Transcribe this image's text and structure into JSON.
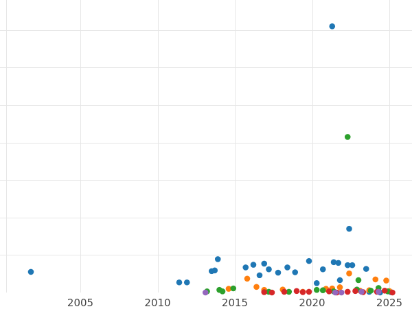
{
  "chart_data": {
    "type": "scatter",
    "title": "",
    "xlabel": "",
    "ylabel": "",
    "x_ticks": [
      2005,
      2010,
      2015,
      2020,
      2025
    ],
    "xlim": [
      2000,
      2026
    ],
    "ylim": [
      0,
      7.8
    ],
    "y_gridlines": [
      1,
      2,
      3,
      4,
      5,
      6,
      7
    ],
    "grid": true,
    "legend": "none",
    "colors": [
      "#1f77b4",
      "#ff7f0e",
      "#2ca02c",
      "#d62728",
      "#9467bd"
    ],
    "series": [
      {
        "color": "#1f77b4",
        "points": [
          [
            2001.8,
            0.55
          ],
          [
            2011.4,
            0.27
          ],
          [
            2011.9,
            0.27
          ],
          [
            2013.5,
            0.57
          ],
          [
            2013.7,
            0.59
          ],
          [
            2013.9,
            0.89
          ],
          [
            2015.7,
            0.67
          ],
          [
            2016.2,
            0.74
          ],
          [
            2016.6,
            0.46
          ],
          [
            2016.9,
            0.77
          ],
          [
            2017.2,
            0.62
          ],
          [
            2017.8,
            0.53
          ],
          [
            2018.4,
            0.67
          ],
          [
            2018.9,
            0.54
          ],
          [
            2019.8,
            0.84
          ],
          [
            2020.3,
            0.25
          ],
          [
            2020.7,
            0.62
          ],
          [
            2021.3,
            7.1
          ],
          [
            2021.4,
            0.81
          ],
          [
            2021.7,
            0.79
          ],
          [
            2021.8,
            0.33
          ],
          [
            2022.3,
            0.73
          ],
          [
            2022.4,
            1.7
          ],
          [
            2022.6,
            0.73
          ],
          [
            2023.5,
            0.63
          ],
          [
            2023.7,
            0.02
          ],
          [
            2024.4,
            0.0
          ],
          [
            2025.1,
            0.01
          ]
        ]
      },
      {
        "color": "#ff7f0e",
        "points": [
          [
            2014.6,
            0.1
          ],
          [
            2015.8,
            0.37
          ],
          [
            2016.4,
            0.15
          ],
          [
            2016.9,
            0.07
          ],
          [
            2018.1,
            0.08
          ],
          [
            2019.4,
            0.02
          ],
          [
            2020.9,
            0.1
          ],
          [
            2021.3,
            0.11
          ],
          [
            2021.8,
            0.14
          ],
          [
            2022.4,
            0.51
          ],
          [
            2023.1,
            0.05
          ],
          [
            2023.7,
            0.06
          ],
          [
            2024.1,
            0.35
          ],
          [
            2024.8,
            0.32
          ],
          [
            2025.0,
            0.04
          ]
        ]
      },
      {
        "color": "#2ca02c",
        "points": [
          [
            2013.2,
            0.03
          ],
          [
            2014.0,
            0.07
          ],
          [
            2014.2,
            0.03
          ],
          [
            2014.9,
            0.11
          ],
          [
            2017.2,
            0.02
          ],
          [
            2018.5,
            0.02
          ],
          [
            2020.3,
            0.07
          ],
          [
            2020.7,
            0.06
          ],
          [
            2021.4,
            0.03
          ],
          [
            2022.3,
            4.15
          ],
          [
            2022.9,
            0.08
          ],
          [
            2023.0,
            0.33
          ],
          [
            2023.8,
            0.05
          ],
          [
            2024.3,
            0.12
          ],
          [
            2024.9,
            0.03
          ]
        ]
      },
      {
        "color": "#d62728",
        "points": [
          [
            2016.9,
            0.01
          ],
          [
            2017.4,
            0.0
          ],
          [
            2018.2,
            0.02
          ],
          [
            2019.0,
            0.04
          ],
          [
            2019.4,
            0.01
          ],
          [
            2019.8,
            0.02
          ],
          [
            2021.1,
            0.03
          ],
          [
            2021.6,
            0.0
          ],
          [
            2022.3,
            0.02
          ],
          [
            2022.8,
            0.04
          ],
          [
            2023.3,
            0.01
          ],
          [
            2024.2,
            0.02
          ],
          [
            2024.7,
            0.05
          ],
          [
            2025.2,
            0.0
          ]
        ]
      },
      {
        "color": "#9467bd",
        "points": [
          [
            2013.1,
            0.0
          ],
          [
            2021.5,
            0.0
          ],
          [
            2021.9,
            0.0
          ],
          [
            2023.2,
            0.02
          ],
          [
            2024.3,
            0.02
          ]
        ]
      }
    ]
  }
}
